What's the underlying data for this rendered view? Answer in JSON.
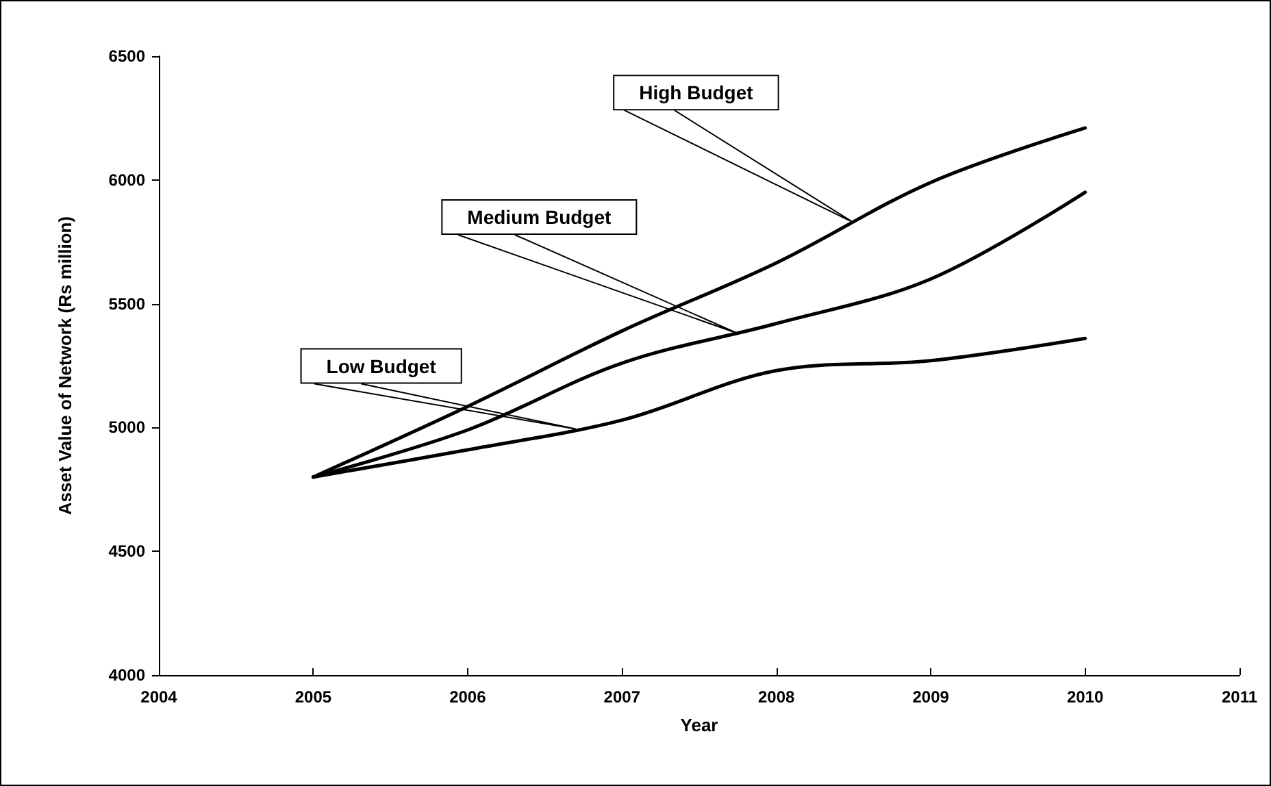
{
  "chart_data": {
    "type": "line",
    "xlabel": "Year",
    "ylabel": "Asset Value of Network (Rs million)",
    "x": [
      2005,
      2006,
      2007,
      2008,
      2009,
      2010
    ],
    "series": [
      {
        "name": "High Budget",
        "color": "#000000",
        "values": [
          4800,
          5085,
          5390,
          5665,
          5990,
          6210
        ]
      },
      {
        "name": "Medium Budget",
        "color": "#000000",
        "values": [
          4800,
          4990,
          5260,
          5420,
          5600,
          5950
        ]
      },
      {
        "name": "Low Budget",
        "color": "#000000",
        "values": [
          4800,
          4910,
          5030,
          5230,
          5270,
          5360
        ]
      }
    ],
    "xlim": [
      2004,
      2011
    ],
    "xticks": [
      2004,
      2005,
      2006,
      2007,
      2008,
      2009,
      2010,
      2011
    ],
    "ylim": [
      4000,
      6500
    ],
    "yticks": [
      4000,
      4500,
      5000,
      5500,
      6000,
      6500
    ],
    "grid": false,
    "legend": false,
    "marker": "none",
    "line_style": "solid"
  }
}
